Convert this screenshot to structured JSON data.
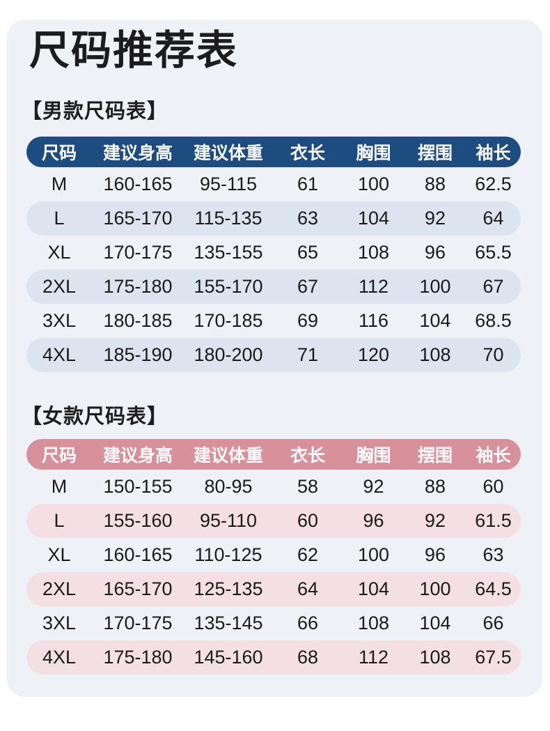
{
  "page": {
    "title": "尺码推荐表",
    "background_color": "#ffffff",
    "card_color": "#eef2f6",
    "text_color": "#1a1a1a"
  },
  "columns": [
    "尺码",
    "建议身高",
    "建议体重",
    "衣长",
    "胸围",
    "摆围",
    "袖长"
  ],
  "tables": [
    {
      "id": "men",
      "section_label": "【男款尺码表】",
      "header_color": "#1d4c80",
      "header_text_color": "#ffffff",
      "stripe_color": "#dce5ef",
      "rows": [
        [
          "M",
          "160-165",
          "95-115",
          "61",
          "100",
          "88",
          "62.5"
        ],
        [
          "L",
          "165-170",
          "115-135",
          "63",
          "104",
          "92",
          "64"
        ],
        [
          "XL",
          "170-175",
          "135-155",
          "65",
          "108",
          "96",
          "65.5"
        ],
        [
          "2XL",
          "175-180",
          "155-170",
          "67",
          "112",
          "100",
          "67"
        ],
        [
          "3XL",
          "180-185",
          "170-185",
          "69",
          "116",
          "104",
          "68.5"
        ],
        [
          "4XL",
          "185-190",
          "180-200",
          "71",
          "120",
          "108",
          "70"
        ]
      ]
    },
    {
      "id": "women",
      "section_label": "【女款尺码表】",
      "header_color": "#d8909b",
      "header_text_color": "#ffffff",
      "stripe_color": "#f3dfe4",
      "rows": [
        [
          "M",
          "150-155",
          "80-95",
          "58",
          "92",
          "88",
          "60"
        ],
        [
          "L",
          "155-160",
          "95-110",
          "60",
          "96",
          "92",
          "61.5"
        ],
        [
          "XL",
          "160-165",
          "110-125",
          "62",
          "100",
          "96",
          "63"
        ],
        [
          "2XL",
          "165-170",
          "125-135",
          "64",
          "104",
          "100",
          "64.5"
        ],
        [
          "3XL",
          "170-175",
          "135-145",
          "66",
          "108",
          "104",
          "66"
        ],
        [
          "4XL",
          "175-180",
          "145-160",
          "68",
          "112",
          "108",
          "67.5"
        ]
      ]
    }
  ]
}
